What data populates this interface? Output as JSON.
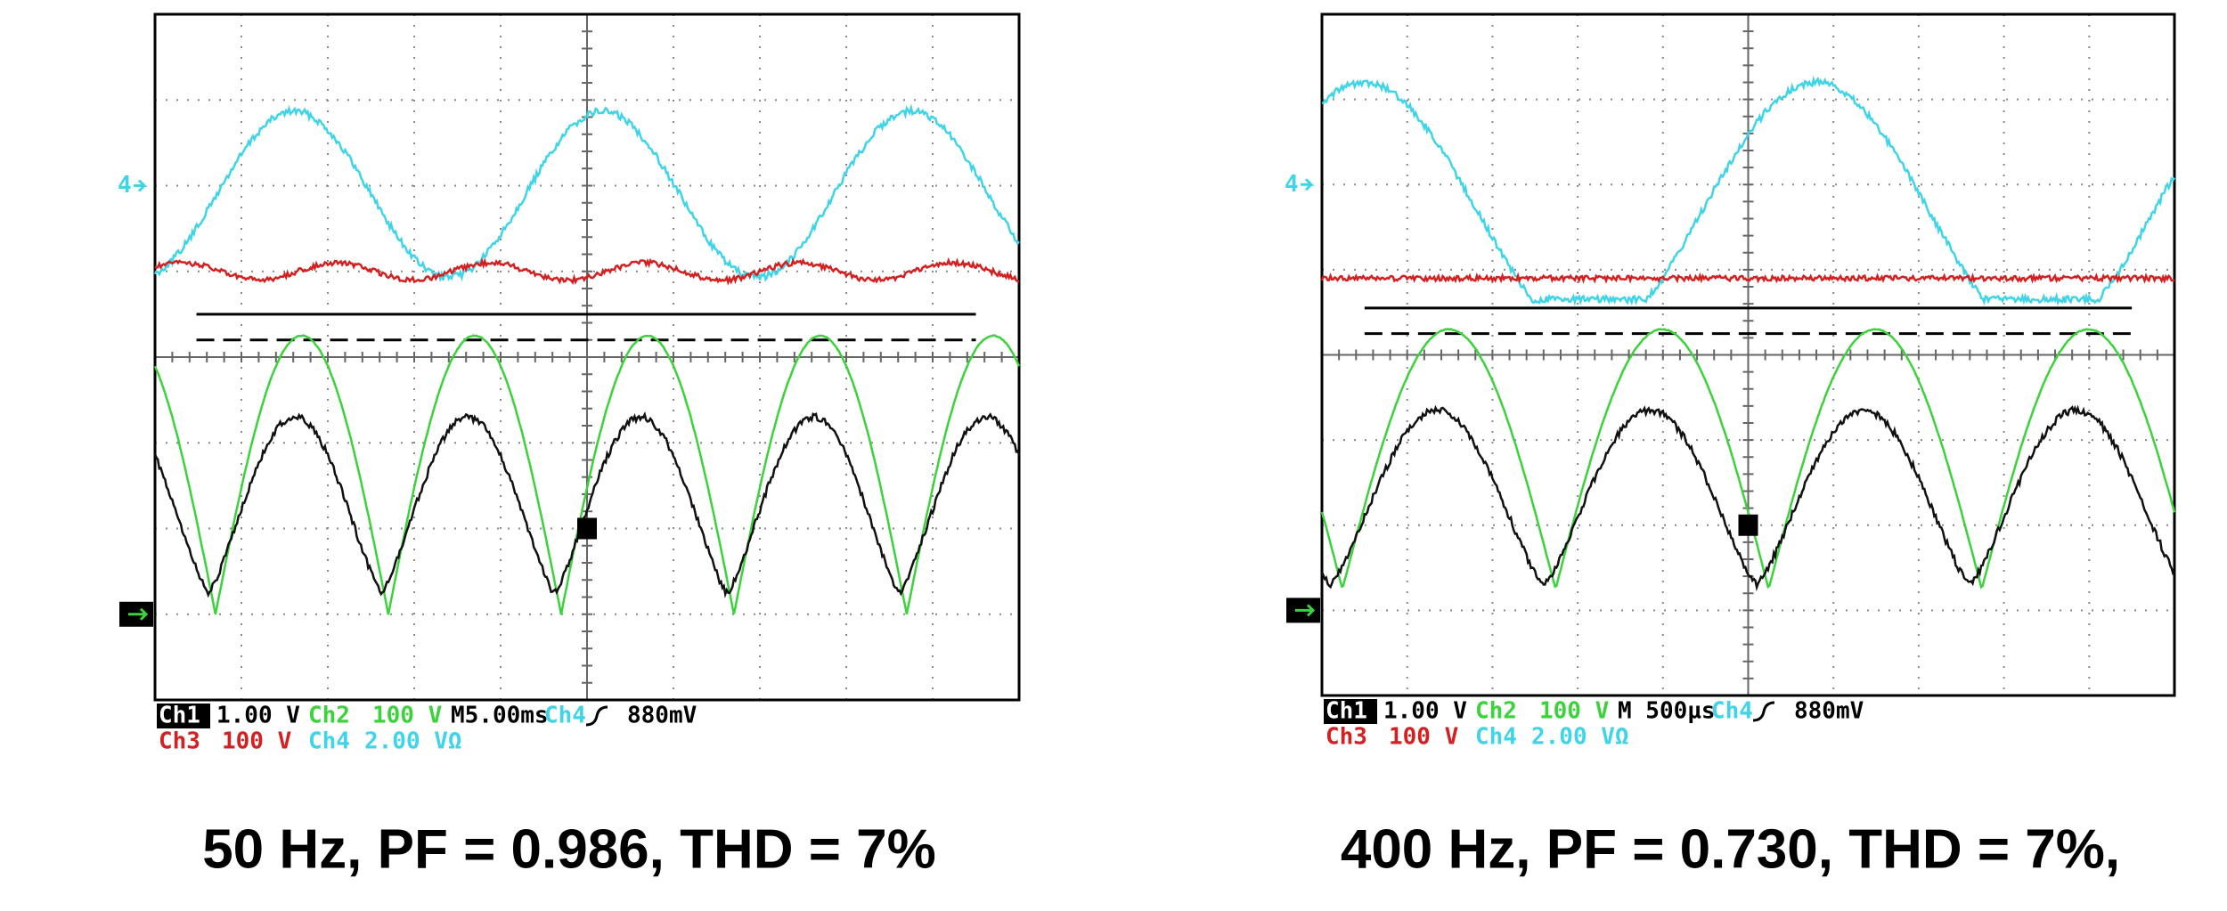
{
  "panels": [
    {
      "readout": {
        "ch1": "Ch1",
        "ch1_scale": "1.00 V",
        "ch2": "Ch2",
        "ch2_scale": "100 V",
        "timebase": "M5.00ms",
        "trigger_source": "Ch4",
        "trigger_level": "880mV",
        "ch3": "Ch3",
        "ch3_scale": "100 V",
        "ch4": "Ch4",
        "ch4_scale": "2.00 VΩ"
      },
      "ch4_marker": "4",
      "caption": "50 Hz, PF = 0.986, THD = 7%"
    },
    {
      "readout": {
        "ch1": "Ch1",
        "ch1_scale": "1.00 V",
        "ch2": "Ch2",
        "ch2_scale": "100 V",
        "timebase": "M 500µs",
        "trigger_source": "Ch4",
        "trigger_level": "880mV",
        "ch3": "Ch3",
        "ch3_scale": "100 V",
        "ch4": "Ch4",
        "ch4_scale": "2.00 VΩ"
      },
      "ch4_marker": "4",
      "caption": "400 Hz, PF = 0.730, THD = 7%,"
    }
  ]
}
